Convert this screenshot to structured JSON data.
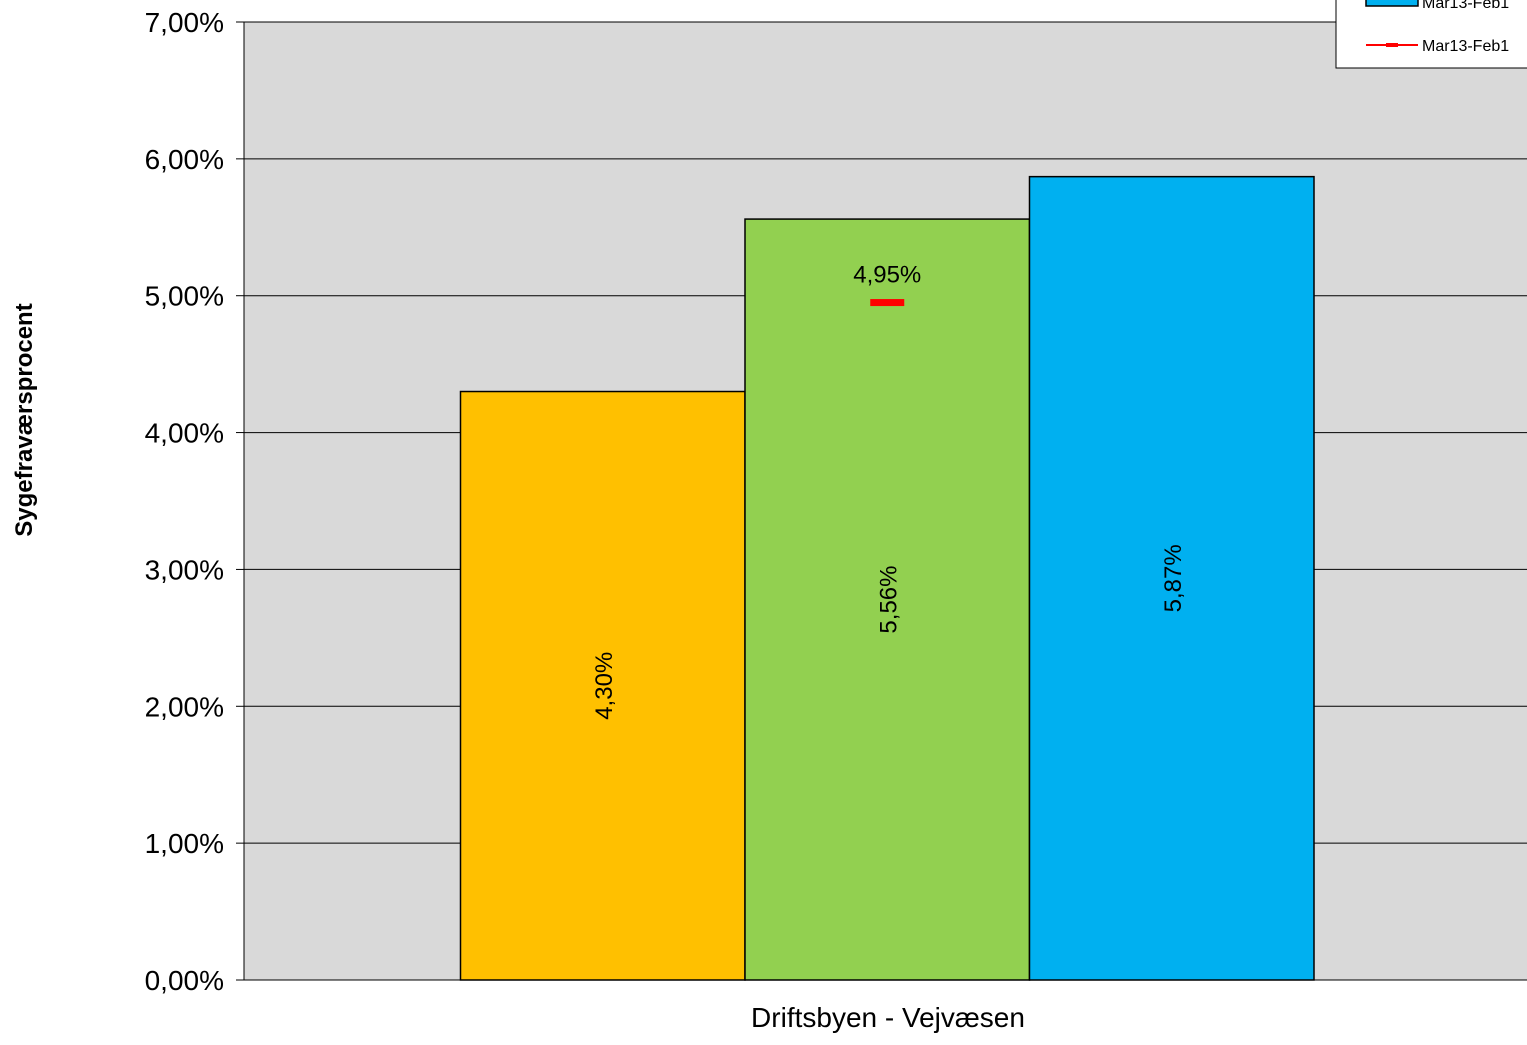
{
  "chart_data": {
    "type": "bar",
    "categories": [
      "Driftsbyen - Vejvæsen"
    ],
    "series": [
      {
        "name": "",
        "values": [
          4.3
        ],
        "color": "#ffc000",
        "label": "4,30%"
      },
      {
        "name": "",
        "values": [
          5.56
        ],
        "color": "#92d050",
        "label": "5,56%"
      },
      {
        "name": "Mar13-Feb1",
        "values": [
          5.87
        ],
        "color": "#00b0f0",
        "label": "5,87%"
      }
    ],
    "marker_series": {
      "name": "Mar13-Feb1",
      "values": [
        4.95
      ],
      "color": "#ff0000",
      "label": "4,95%"
    },
    "yticks": [
      "0,00%",
      "1,00%",
      "2,00%",
      "3,00%",
      "4,00%",
      "5,00%",
      "6,00%",
      "7,00%"
    ],
    "ylim": [
      0,
      7
    ],
    "ylabel": "Sygefraværsprocent",
    "xlabel": "",
    "grid": true,
    "legend": "top-right",
    "plot_background": "#d9d9d9"
  }
}
